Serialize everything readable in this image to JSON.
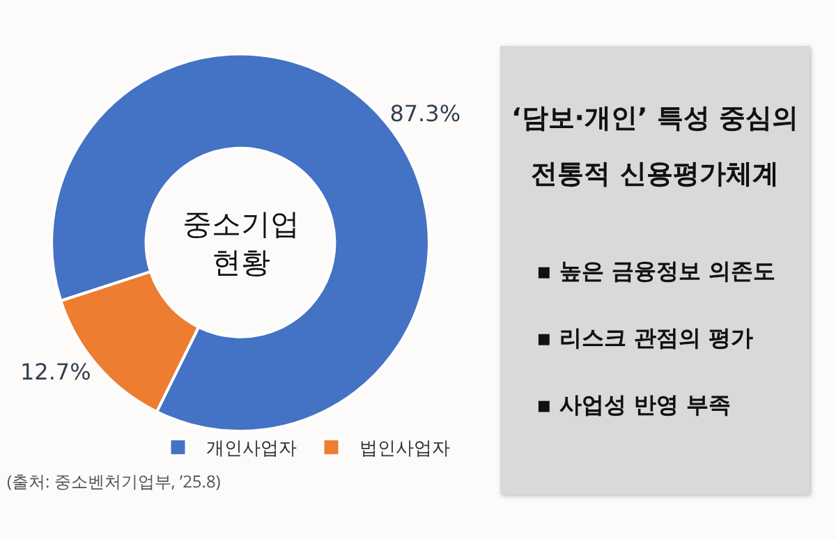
{
  "chart_data": [
    {
      "type": "donut",
      "title": "중소기업 현황",
      "categories": [
        "개인사업자",
        "법인사업자"
      ],
      "values": [
        87.3,
        12.7
      ],
      "colors": [
        "#4472c4",
        "#ed7d31"
      ],
      "value_labels": [
        "87.3%",
        "12.7%"
      ],
      "legend": "bottom",
      "annotations": [
        "(출처: 중소벤처기업부, ’25.8)"
      ]
    },
    {
      "type": "other",
      "title": "‘담보·개인’ 특성 중심의 전통적 신용평가체계",
      "annotations": [
        "▪ 높은 금융정보 의존도",
        "▪ 리스크 관점의 평가",
        "▪ 사업성 반영 부족"
      ]
    }
  ]
}
